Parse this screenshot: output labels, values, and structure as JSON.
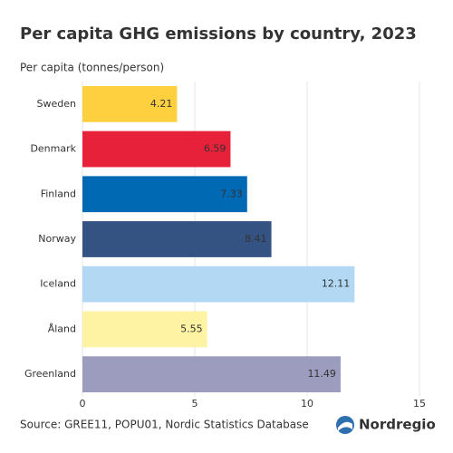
{
  "chart_data": {
    "type": "barh",
    "title": "Per capita GHG emissions by country, 2023",
    "value_axis_label": "Per capita (tonnes/person)",
    "categories": [
      "Sweden",
      "Denmark",
      "Finland",
      "Norway",
      "Iceland",
      "Åland",
      "Greenland"
    ],
    "values": [
      4.21,
      6.59,
      7.33,
      8.41,
      12.11,
      5.55,
      11.49
    ],
    "colors": [
      "#fecf3e",
      "#e8213a",
      "#0069b4",
      "#345382",
      "#b2d8f3",
      "#fdf3a3",
      "#9c9cbf"
    ],
    "xlim": [
      0,
      15
    ],
    "xticks": [
      0,
      5,
      10,
      15
    ],
    "grid": true,
    "source": "Source: GREE11, POPU01, Nordic Statistics Database",
    "logo": "Nordregio"
  }
}
